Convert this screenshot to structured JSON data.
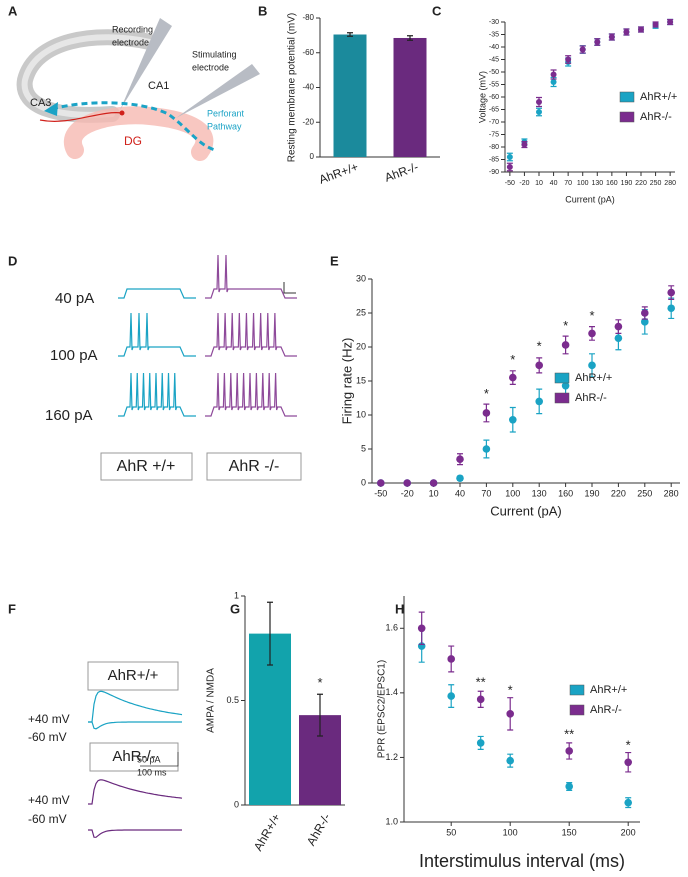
{
  "panel_labels": [
    "A",
    "B",
    "C",
    "D",
    "E",
    "F",
    "G",
    "H"
  ],
  "diagram": {
    "recording_electrode": [
      "Recording",
      "electrode"
    ],
    "stimulating_electrode": [
      "Stimulating",
      "electrode"
    ],
    "ca1": "CA1",
    "ca3": "CA3",
    "dg": "DG",
    "perforant_pathway": [
      "Perforant",
      "Pathway"
    ]
  },
  "traces_d": {
    "currents": [
      "40 pA",
      "100 pA",
      "160 pA"
    ],
    "groups": [
      "AhR +/+",
      "AhR -/-"
    ]
  },
  "traces_f": {
    "groups": [
      "AhR+/+",
      "AhR-/-"
    ],
    "holding": [
      "+40 mV",
      "-60 mV"
    ],
    "scale": [
      "50 pA",
      "100 ms"
    ]
  },
  "chart_data": [
    {
      "type": "bar",
      "y_label": "Resting membrane potential (mV)",
      "categories": [
        "AhR+/+",
        "AhR-/-"
      ],
      "values": [
        -70.5,
        -68.5
      ],
      "errors": [
        1,
        1.3
      ],
      "colors": [
        "#1b8a9c",
        "#6a2a7e"
      ],
      "ylim": [
        0,
        -80
      ],
      "yticks": [
        0,
        -20,
        -40,
        -60,
        -80
      ]
    },
    {
      "type": "scatter",
      "x_label": "Current (pA)",
      "y_label": "Voltage (mV)",
      "x": [
        -50,
        -20,
        10,
        40,
        70,
        100,
        130,
        160,
        190,
        220,
        250,
        280
      ],
      "xlim": [
        -60,
        290
      ],
      "xticks": [
        -50,
        -20,
        10,
        40,
        70,
        100,
        130,
        160,
        190,
        220,
        250,
        280
      ],
      "ylim": [
        -90,
        -30
      ],
      "yticks": [
        -90,
        -85,
        -80,
        -75,
        -70,
        -65,
        -60,
        -55,
        -50,
        -45,
        -40,
        -35,
        -30
      ],
      "legend": "right",
      "series": [
        {
          "name": "AhR+/+",
          "color": "#1aa3c4",
          "values": [
            -84,
            -78,
            -66,
            -54,
            -46,
            -41,
            -38,
            -36,
            -34,
            -33,
            -31.5,
            -30
          ],
          "errors": [
            1.5,
            1.2,
            1.5,
            1.8,
            1.6,
            1.5,
            1.3,
            1.2,
            1.2,
            1.0,
            1.0,
            1.0
          ]
        },
        {
          "name": "AhR-/-",
          "color": "#7b2c8e",
          "values": [
            -88,
            -79,
            -62,
            -51,
            -45,
            -41,
            -38,
            -36,
            -34,
            -33,
            -31,
            -30
          ],
          "errors": [
            1.5,
            1.2,
            1.8,
            1.8,
            1.5,
            1.4,
            1.3,
            1.2,
            1.2,
            1.0,
            1.0,
            1.0
          ]
        }
      ]
    },
    {
      "type": "scatter",
      "x_label": "Current (pA)",
      "y_label": "Firing rate (Hz)",
      "x": [
        -50,
        -20,
        10,
        40,
        70,
        100,
        130,
        160,
        190,
        220,
        250,
        280
      ],
      "xlim": [
        -60,
        290
      ],
      "xticks": [
        -50,
        -20,
        10,
        40,
        70,
        100,
        130,
        160,
        190,
        220,
        250,
        280
      ],
      "ylim": [
        0,
        30
      ],
      "yticks": [
        0,
        5,
        10,
        15,
        20,
        25,
        30
      ],
      "legend": "right",
      "series": [
        {
          "name": "AhR+/+",
          "color": "#1aa3c4",
          "values": [
            0,
            0,
            0,
            0.7,
            5,
            9.3,
            12,
            14.3,
            17.3,
            21.3,
            23.7,
            25.7
          ],
          "errors": [
            0,
            0,
            0,
            0.3,
            1.3,
            1.8,
            1.8,
            1.5,
            1.7,
            1.7,
            1.8,
            1.5
          ]
        },
        {
          "name": "AhR-/-",
          "color": "#7b2c8e",
          "values": [
            0,
            0,
            0,
            3.5,
            10.3,
            15.5,
            17.3,
            20.3,
            22,
            23,
            25,
            28
          ],
          "errors": [
            0,
            0,
            0,
            0.8,
            1.3,
            1.0,
            1.1,
            1.3,
            1.0,
            1.0,
            0.9,
            1.0
          ]
        }
      ],
      "annotations": [
        {
          "text": "*",
          "x": 70,
          "y": 13
        },
        {
          "text": "*",
          "x": 100,
          "y": 18
        },
        {
          "text": "*",
          "x": 130,
          "y": 20
        },
        {
          "text": "*",
          "x": 160,
          "y": 23
        },
        {
          "text": "*",
          "x": 190,
          "y": 24.5
        }
      ]
    },
    {
      "type": "bar",
      "y_label": "AMPA / NMDA",
      "categories": [
        "AhR+/+",
        "AhR-/-"
      ],
      "values": [
        0.82,
        0.43
      ],
      "errors": [
        0.15,
        0.1
      ],
      "colors": [
        "#12a3ac",
        "#6a2a7e"
      ],
      "ylim": [
        0,
        1
      ],
      "yticks": [
        0,
        0.5,
        1
      ],
      "annotations": [
        {
          "text": "*",
          "x": "AhR-/-",
          "y": 0.58
        }
      ]
    },
    {
      "type": "scatter",
      "x_label": "Interstimulus interval (ms)",
      "y_label": "PPR (EPSC2/EPSC1)",
      "x": [
        25,
        50,
        75,
        100,
        150,
        200
      ],
      "xlim": [
        10,
        210
      ],
      "xticks": [
        50,
        100,
        150,
        200
      ],
      "ylim": [
        1.0,
        1.7
      ],
      "yticks": [
        {
          "value": 1,
          "label": "1.0"
        },
        {
          "value": 1.2,
          "label": "1.2"
        },
        {
          "value": 1.4,
          "label": "1.4"
        },
        {
          "value": 1.6,
          "label": "1.6"
        }
      ],
      "legend": "right",
      "series": [
        {
          "name": "AhR+/+",
          "color": "#1aa3c4",
          "values": [
            1.545,
            1.39,
            1.245,
            1.19,
            1.11,
            1.06
          ],
          "errors": [
            0.05,
            0.035,
            0.02,
            0.02,
            0.012,
            0.015
          ]
        },
        {
          "name": "AhR-/-",
          "color": "#7b2c8e",
          "values": [
            1.6,
            1.505,
            1.38,
            1.335,
            1.22,
            1.185
          ],
          "errors": [
            0.05,
            0.04,
            0.025,
            0.05,
            0.025,
            0.03
          ]
        }
      ],
      "annotations": [
        {
          "text": "**",
          "x": 75,
          "y": 1.43
        },
        {
          "text": "*",
          "x": 100,
          "y": 1.405
        },
        {
          "text": "**",
          "x": 150,
          "y": 1.27
        },
        {
          "text": "*",
          "x": 200,
          "y": 1.235
        }
      ]
    }
  ]
}
